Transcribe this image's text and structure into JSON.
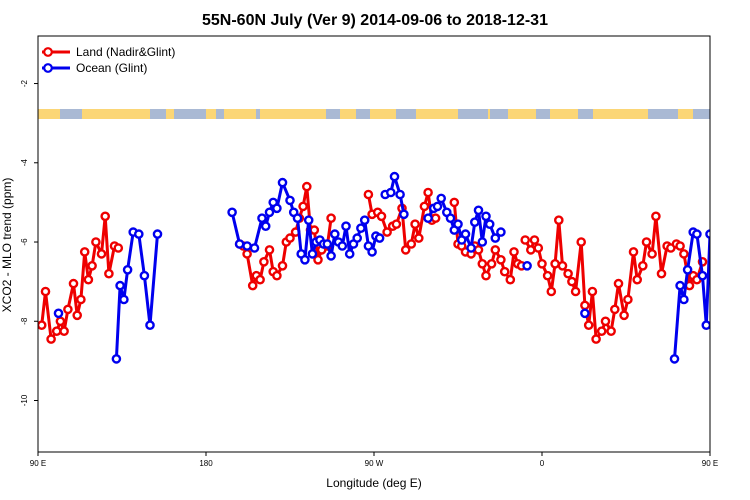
{
  "chart_data": {
    "type": "line",
    "title": "55N-60N July (Ver 9)   2014-09-06 to 2018-12-31",
    "xlabel": "Longitude (deg E)",
    "ylabel": "XCO2 - MLO trend (ppm)",
    "xlim": [
      90,
      450
    ],
    "ylim": [
      -11.3,
      -0.8
    ],
    "x_tick_labels": [
      {
        "value": 90,
        "label": "90 E"
      },
      {
        "value": 180,
        "label": "180"
      },
      {
        "value": 270,
        "label": "90 W"
      },
      {
        "value": 360,
        "label": "0"
      },
      {
        "value": 450,
        "label": "90 E"
      },
      {
        "value": 540,
        "label": "180"
      }
    ],
    "y_ticks": [
      -2,
      -4,
      -6,
      -8,
      -10
    ],
    "y_tick_labels": [
      "-2",
      "-4",
      "-6",
      "-8",
      "-10"
    ],
    "legend_position": "top-left",
    "map_strip": {
      "land_color": "#a9b9d4",
      "ocean_color": "#fbd676"
    },
    "series": [
      {
        "name": "Land (Nadir&Glint)",
        "color": "#ee0000",
        "x": [
          92,
          94,
          97,
          100,
          102,
          104,
          106,
          109,
          111,
          113,
          115,
          117,
          119,
          121,
          124,
          126,
          128,
          131,
          133,
          198,
          200,
          202,
          205,
          207,
          209,
          211,
          214,
          216,
          218,
          221,
          223,
          225,
          228,
          230,
          232,
          234,
          236,
          238,
          240,
          242,
          245,
          247,
          267,
          269,
          272,
          274,
          277,
          280,
          282,
          285,
          287,
          290,
          292,
          294,
          297,
          299,
          301,
          303,
          313,
          315,
          317,
          319,
          322,
          324,
          326,
          328,
          330,
          333,
          335,
          338,
          340,
          343,
          345,
          347,
          349,
          351,
          354,
          356,
          358,
          360,
          363,
          365,
          367,
          369,
          371,
          374,
          376,
          378,
          381,
          383,
          385,
          387,
          389,
          392,
          394,
          397,
          399,
          401,
          404,
          406,
          409,
          411,
          414,
          416,
          419,
          421,
          424,
          427,
          429,
          432,
          434,
          436,
          439,
          441,
          443,
          446
        ],
        "y": [
          -8.1,
          -7.25,
          -8.45,
          -8.25,
          -8.0,
          -8.25,
          -7.7,
          -7.05,
          -7.85,
          -7.45,
          -6.25,
          -6.95,
          -6.6,
          -6.0,
          -6.3,
          -5.35,
          -6.8,
          -6.1,
          -6.15,
          -6.05,
          -6.1,
          -6.3,
          -7.1,
          -6.85,
          -6.95,
          -6.5,
          -6.2,
          -6.75,
          -6.85,
          -6.6,
          -6.0,
          -5.9,
          -5.75,
          -5.4,
          -5.1,
          -4.6,
          -5.7,
          -5.7,
          -6.45,
          -6.2,
          -6.1,
          -5.4,
          -4.8,
          -5.3,
          -5.25,
          -5.35,
          -5.75,
          -5.6,
          -5.55,
          -5.15,
          -6.2,
          -6.05,
          -5.55,
          -5.9,
          -5.1,
          -4.75,
          -5.45,
          -5.4,
          -5.0,
          -6.05,
          -6.1,
          -6.25,
          -6.3,
          -6.1,
          -6.2,
          -6.55,
          -6.85,
          -6.55,
          -6.2,
          -6.45,
          -6.75,
          -6.95,
          -6.25,
          -6.55,
          -6.6,
          -5.95,
          -6.2,
          -5.95,
          -6.15,
          -6.55,
          -6.85,
          -7.25,
          -6.55,
          -5.45,
          -6.6,
          -6.8,
          -7.0,
          -7.25,
          -6.0,
          -7.6,
          -8.1,
          -7.25,
          -8.45,
          -8.25,
          -8.0,
          -8.25,
          -7.7,
          -7.05,
          -7.85,
          -7.45,
          -6.25,
          -6.95,
          -6.6,
          -6.0,
          -6.3,
          -5.35,
          -6.8,
          -6.1,
          -6.15,
          -6.05,
          -6.1,
          -6.3,
          -7.1,
          -6.85,
          -6.95,
          -6.5
        ],
        "segments": [
          [
            0,
            18
          ],
          [
            19,
            41
          ],
          [
            42,
            57
          ],
          [
            58,
            74
          ],
          [
            75,
            118
          ]
        ]
      },
      {
        "name": "Ocean (Glint)",
        "color": "#0000ee",
        "x": [
          101,
          132,
          134,
          136,
          138,
          141,
          144,
          147,
          150,
          154,
          194,
          198,
          202,
          206,
          210,
          212,
          214,
          216,
          218,
          221,
          225,
          227,
          229,
          231,
          233,
          235,
          237,
          239,
          241,
          243,
          245,
          247,
          249,
          251,
          253,
          255,
          257,
          259,
          261,
          263,
          265,
          267,
          269,
          271,
          273,
          276,
          279,
          281,
          284,
          286,
          299,
          302,
          304,
          306,
          309,
          311,
          313,
          315,
          317,
          319,
          322,
          324,
          326,
          328,
          330,
          332,
          335,
          338,
          352,
          383,
          431,
          434,
          436,
          438,
          441,
          443,
          446,
          448,
          450
        ],
        "y": [
          -7.8,
          -8.95,
          -7.1,
          -7.45,
          -6.7,
          -5.75,
          -5.8,
          -6.85,
          -8.1,
          -5.8,
          -5.25,
          -6.05,
          -6.1,
          -6.15,
          -5.4,
          -5.6,
          -5.25,
          -5.0,
          -5.15,
          -4.5,
          -4.95,
          -5.25,
          -5.4,
          -6.3,
          -6.45,
          -5.45,
          -6.3,
          -6.0,
          -5.95,
          -6.05,
          -6.05,
          -6.35,
          -5.8,
          -6.0,
          -6.1,
          -5.6,
          -6.3,
          -6.05,
          -5.9,
          -5.65,
          -5.45,
          -6.1,
          -6.25,
          -5.85,
          -5.9,
          -4.8,
          -4.75,
          -4.35,
          -4.8,
          -5.3,
          -5.4,
          -5.15,
          -5.1,
          -4.9,
          -5.25,
          -5.4,
          -5.7,
          -5.55,
          -5.95,
          -5.8,
          -6.15,
          -5.5,
          -5.2,
          -6.0,
          -5.35,
          -5.55,
          -5.9,
          -5.75,
          -6.6,
          -7.8,
          -8.95,
          -7.1,
          -7.45,
          -6.7,
          -5.75,
          -5.8,
          -6.85,
          -8.1,
          -5.8
        ],
        "segments": [
          [
            0,
            0
          ],
          [
            1,
            9
          ],
          [
            10,
            44
          ],
          [
            45,
            49
          ],
          [
            50,
            67
          ],
          [
            68,
            68
          ],
          [
            69,
            69
          ],
          [
            70,
            78
          ]
        ]
      }
    ]
  }
}
